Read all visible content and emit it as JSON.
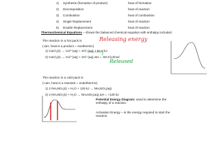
{
  "reaction_list": [
    {
      "number": "1)",
      "name": "Synthesis (formation of product)",
      "heat": "heat of formation"
    },
    {
      "number": "2)",
      "name": "Decomposition",
      "heat": "heat of reaction"
    },
    {
      "number": "3)",
      "name": "Combustion",
      "heat": "heat of combustion"
    },
    {
      "number": "4)",
      "name": "Single Replacement",
      "heat": "heat of reaction"
    },
    {
      "number": "5)",
      "name": "Double Replacement",
      "heat": "heat of reaction"
    }
  ],
  "definition": {
    "term": "Thermochemical Equations",
    "text": "– shows the balanced chemical equation with enthalpy included."
  },
  "hot_pack": {
    "intro": "The reaction in a hot pack is",
    "handwriting": "Releasing energy",
    "note": "(-ΔH, heat is a product = exothermic)",
    "equations": [
      "1) CaCl₂(s) → Ca²⁺(aq) + 2Cl⁻(aq) + 82.8 kJ",
      "2) CaCl₂(s) → Ca²⁺(aq) + 2Cl⁻(aq)   ΔH = -82.8 kJ/mol"
    ],
    "handwriting_2": "Released"
  },
  "cold_pack": {
    "intro": "The reaction in a cold pack is",
    "note": "(+ΔH, heat is a reactant = endothermic)",
    "equations": [
      "1) 2 NH₄NO₃(s) + H₂O + 129 kJ → NH₄NO₃(aq)",
      "2) 2 NH₄NO₃(s) + H₂O → NH₄NO₃(aq)   ΔH = +129 kJ"
    ]
  },
  "diagram_note": {
    "term": "Potential Energy Diagram:",
    "text": "used to determine the enthalpy of a reaction."
  },
  "activation_note": {
    "text": "Activation Energy – is the energy required to start the reaction."
  }
}
